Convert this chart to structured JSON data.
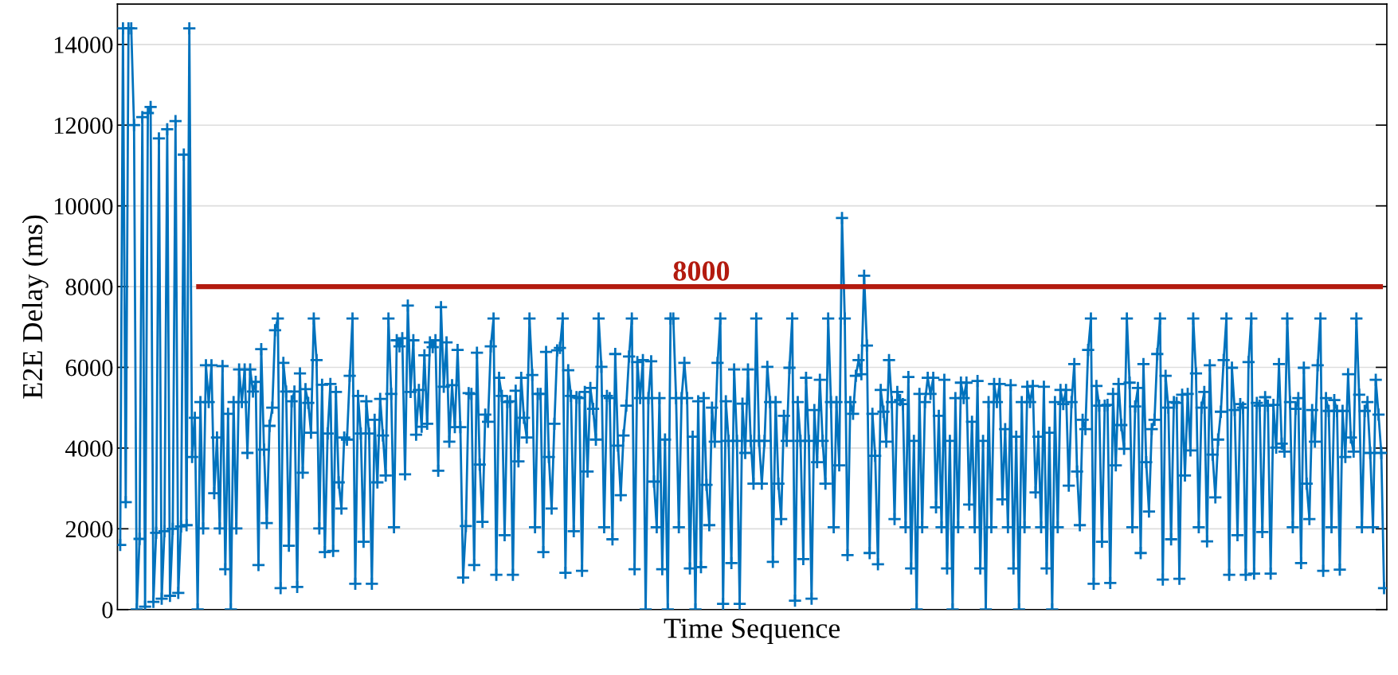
{
  "chart_data": {
    "type": "line",
    "xlabel": "Time Sequence",
    "ylabel": "E2E Delay (ms)",
    "ylim": [
      0,
      15000
    ],
    "yticks": [
      0,
      2000,
      4000,
      6000,
      8000,
      10000,
      12000,
      14000
    ],
    "grid": "y",
    "legend": false,
    "marker": "cross",
    "line_style": "solid",
    "ref_lines": [
      {
        "axis": "y",
        "value": 8000,
        "label": "8000",
        "color": "#b31b0f",
        "line_style": "solid"
      }
    ],
    "categories": [
      null,
      null,
      null,
      null,
      null,
      null,
      null,
      null,
      null,
      null,
      null,
      null,
      null,
      null,
      null,
      null,
      null,
      null,
      null,
      null,
      null,
      null,
      null,
      null,
      null,
      null,
      null,
      null,
      null,
      null,
      null,
      null,
      null,
      null,
      null,
      null,
      null,
      null,
      null,
      null,
      null,
      null,
      null,
      null,
      null,
      null,
      null,
      null,
      null,
      null,
      null,
      null,
      null,
      null,
      null,
      null,
      null,
      null,
      null,
      null,
      null,
      null,
      null,
      null,
      null,
      null,
      null,
      null,
      null,
      null,
      null,
      null,
      null,
      null,
      null,
      null,
      null,
      null,
      null,
      null,
      null,
      null,
      null,
      null,
      null,
      null,
      null,
      null,
      null,
      null,
      null,
      null,
      null,
      null,
      null,
      null,
      null,
      null,
      null,
      null,
      null,
      null,
      null,
      null,
      null,
      null,
      null,
      null,
      null,
      null,
      null,
      null,
      null,
      null,
      null,
      null,
      null,
      null,
      null,
      null,
      null,
      null,
      null,
      null,
      null,
      null,
      null,
      null,
      null,
      null,
      null,
      null,
      null,
      null,
      null,
      null,
      null,
      null,
      null,
      null,
      null,
      null,
      null,
      null,
      null,
      null,
      null,
      null,
      null,
      null,
      null,
      null,
      null,
      null,
      null,
      null,
      null,
      null,
      null,
      null,
      null,
      null,
      null,
      null,
      null,
      null,
      null,
      null,
      null,
      null,
      null,
      null,
      null,
      null,
      null,
      null,
      null,
      null,
      null,
      null,
      null,
      null,
      null,
      null,
      null,
      null,
      null,
      null,
      null,
      null,
      null,
      null,
      null,
      null,
      null,
      null,
      null,
      null,
      null,
      null,
      null,
      null,
      null,
      null,
      null,
      null,
      null,
      null,
      null,
      null,
      null,
      null,
      null,
      null,
      null,
      null,
      null,
      null,
      null,
      null,
      null,
      null,
      null,
      null,
      null,
      null,
      null,
      null,
      null,
      null,
      null,
      null,
      null,
      null,
      null,
      null,
      null,
      null,
      null,
      null,
      null,
      null,
      null,
      null,
      null,
      null,
      null,
      null,
      null,
      null,
      null,
      null,
      null,
      null,
      null,
      null,
      null,
      null,
      null,
      null,
      null,
      null,
      null,
      null,
      null,
      null,
      null,
      null,
      null,
      null,
      null,
      null,
      null,
      null,
      null,
      null,
      null,
      null,
      null,
      null,
      null,
      null,
      null,
      null,
      null,
      null,
      null,
      null,
      null,
      null,
      null,
      null,
      null,
      null,
      null,
      null,
      null,
      null,
      null,
      null,
      null,
      null,
      null,
      null,
      null,
      null,
      null,
      null,
      null,
      null,
      null,
      null,
      null,
      null,
      null,
      null,
      null,
      null,
      null,
      null,
      null,
      null,
      null,
      null,
      null,
      null,
      null,
      null,
      null,
      null,
      null,
      null,
      null,
      null,
      null,
      null,
      null,
      null,
      null,
      null,
      null,
      null,
      null,
      null,
      null,
      null,
      null,
      null,
      null,
      null,
      null,
      null,
      null,
      null,
      null,
      null,
      null,
      null,
      null,
      null,
      null,
      null,
      null,
      null,
      null,
      null,
      null,
      null,
      null,
      null,
      null,
      null,
      null,
      null,
      null,
      null,
      null,
      null,
      null,
      null,
      null,
      null,
      null,
      null,
      null,
      null,
      null,
      null,
      null,
      null,
      null,
      null,
      null,
      null,
      null,
      null,
      null,
      null,
      null,
      null,
      null,
      null,
      null,
      null,
      null,
      null,
      null,
      null,
      null,
      null,
      null,
      null,
      null,
      null,
      null,
      null,
      null,
      null,
      null,
      null,
      null,
      null,
      null,
      null,
      null,
      null,
      null,
      null,
      null,
      null,
      null,
      null,
      null,
      null,
      null,
      null,
      null,
      null,
      null,
      null,
      null,
      null,
      null,
      null,
      null,
      null,
      null,
      null,
      null,
      null,
      null,
      null,
      null,
      null,
      null,
      null,
      null,
      null
    ],
    "series": [
      {
        "color": "#0072bd",
        "values": [
          1600,
          14400,
          2660,
          14400,
          14400,
          12000,
          0,
          1750,
          12200,
          70,
          12300,
          12450,
          190,
          1900,
          11670,
          270,
          1940,
          11900,
          340,
          2000,
          12100,
          410,
          2060,
          11270,
          2090,
          14400,
          3780,
          4750,
          0,
          5140,
          2010,
          6050,
          5140,
          6050,
          2880,
          4260,
          2010,
          6030,
          1000,
          4850,
          0,
          5140,
          2010,
          5950,
          5140,
          5950,
          3880,
          5950,
          5400,
          5640,
          1100,
          6450,
          3960,
          2140,
          4550,
          5000,
          6920,
          7210,
          530,
          6110,
          5400,
          1580,
          5160,
          5400,
          560,
          5850,
          3390,
          5460,
          5120,
          4380,
          7210,
          6180,
          2010,
          5570,
          1420,
          4360,
          5590,
          1450,
          5390,
          3150,
          2500,
          4260,
          4210,
          5790,
          7210,
          640,
          5290,
          4360,
          1680,
          5160,
          4360,
          640,
          4700,
          3150,
          5220,
          4310,
          3320,
          7210,
          5340,
          2040,
          6670,
          6520,
          6720,
          3350,
          7530,
          5390,
          6670,
          4330,
          5440,
          4530,
          6300,
          4600,
          6620,
          6500,
          6670,
          3440,
          7490,
          5520,
          6620,
          4160,
          5560,
          4520,
          6430,
          4520,
          790,
          2070,
          5360,
          5340,
          1100,
          6360,
          3590,
          2170,
          4830,
          4650,
          6520,
          7210,
          860,
          5740,
          5290,
          1840,
          5140,
          5160,
          860,
          5420,
          3670,
          5740,
          4750,
          4260,
          7210,
          5810,
          2040,
          5340,
          5340,
          1420,
          6380,
          3780,
          2500,
          4600,
          6420,
          6480,
          7210,
          910,
          5930,
          5290,
          1940,
          5260,
          5240,
          960,
          5390,
          3420,
          5490,
          4970,
          4210,
          7210,
          6010,
          2040,
          5290,
          5240,
          1740,
          6330,
          4060,
          2830,
          4310,
          5050,
          6270,
          7210,
          1000,
          6130,
          5240,
          6180,
          0,
          5240,
          6150,
          3170,
          2040,
          5240,
          1000,
          4210,
          0,
          7210,
          7210,
          5240,
          2040,
          5240,
          6110,
          5240,
          1020,
          4280,
          0,
          5160,
          1050,
          5240,
          3090,
          2090,
          5000,
          4160,
          6110,
          7210,
          140,
          5160,
          4180,
          1150,
          5950,
          4180,
          140,
          5100,
          3880,
          5950,
          4180,
          3120,
          7210,
          4180,
          3120,
          4180,
          6010,
          5140,
          1180,
          5140,
          3120,
          2240,
          4800,
          4180,
          5990,
          7210,
          220,
          5140,
          4180,
          1250,
          5740,
          4180,
          270,
          4940,
          3650,
          5690,
          4180,
          3120,
          7210,
          5140,
          2040,
          5140,
          3570,
          9700,
          7210,
          1350,
          5140,
          4850,
          5790,
          6180,
          5830,
          8270,
          6540,
          1400,
          4850,
          3810,
          1120,
          5440,
          4900,
          4160,
          6180,
          5140,
          2240,
          5390,
          5190,
          5090,
          2040,
          5760,
          1020,
          4180,
          0,
          5340,
          2040,
          5140,
          5740,
          5340,
          5740,
          2530,
          4800,
          2040,
          5690,
          1020,
          4180,
          0,
          5240,
          2040,
          5620,
          5240,
          5620,
          2600,
          4650,
          2040,
          5660,
          1020,
          4180,
          0,
          5140,
          2040,
          5590,
          5140,
          5590,
          2730,
          4470,
          2040,
          5560,
          1020,
          4280,
          0,
          5140,
          2040,
          5520,
          5140,
          5540,
          2900,
          4280,
          2040,
          5520,
          1020,
          4380,
          0,
          5140,
          2040,
          5440,
          5090,
          5440,
          3070,
          5140,
          6080,
          3420,
          2090,
          4700,
          4470,
          6430,
          7210,
          640,
          5540,
          5050,
          1680,
          5050,
          5070,
          660,
          5340,
          3570,
          5590,
          4570,
          3980,
          7210,
          5620,
          2040,
          5030,
          5490,
          1400,
          6080,
          3650,
          2430,
          4470,
          4700,
          6330,
          7210,
          740,
          5790,
          5000,
          1740,
          5140,
          5120,
          760,
          5320,
          3320,
          5340,
          3940,
          7210,
          5850,
          2040,
          5000,
          5390,
          1690,
          6050,
          3840,
          2780,
          4210,
          4900,
          6180,
          7210,
          860,
          5990,
          4940,
          1840,
          5090,
          5000,
          860,
          6130,
          7210,
          890,
          5120,
          5050,
          1920,
          5260,
          5050,
          890,
          5070,
          4010,
          6080,
          4110,
          3910,
          7210,
          5140,
          2040,
          4970,
          5240,
          1150,
          5990,
          3120,
          2240,
          4940,
          4160,
          6050,
          7210,
          960,
          5240,
          4920,
          2040,
          5190,
          4920,
          990,
          4920,
          3780,
          5830,
          4260,
          3910,
          7210,
          5320,
          2040,
          4920,
          5140,
          3880,
          2040,
          5690,
          4830,
          3880,
          530
        ]
      }
    ]
  }
}
